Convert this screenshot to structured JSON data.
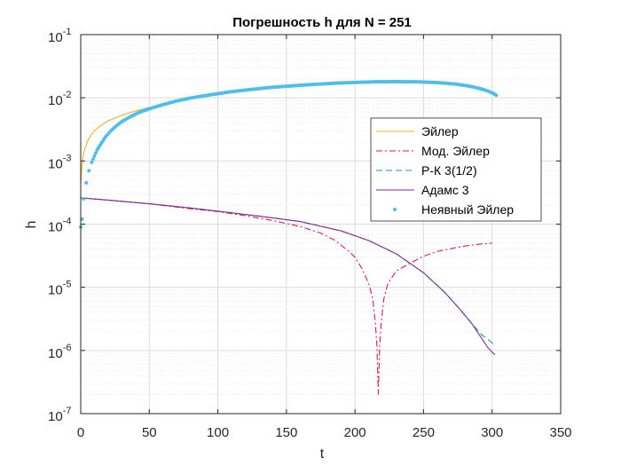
{
  "chart_data": {
    "type": "line",
    "title": "Погрешность h для N = 251",
    "xlabel": "t",
    "ylabel": "h",
    "xlim": [
      0,
      350
    ],
    "ylim_exp": [
      -7,
      -1
    ],
    "yscale": "log",
    "grid": true,
    "minor_grid": true,
    "x_ticks": [
      "0",
      "50",
      "100",
      "150",
      "200",
      "250",
      "300",
      "350"
    ],
    "y_ticks": [
      {
        "base": "10",
        "exp": "-7"
      },
      {
        "base": "10",
        "exp": "-6"
      },
      {
        "base": "10",
        "exp": "-5"
      },
      {
        "base": "10",
        "exp": "-4"
      },
      {
        "base": "10",
        "exp": "-3"
      },
      {
        "base": "10",
        "exp": "-2"
      },
      {
        "base": "10",
        "exp": "-1"
      }
    ],
    "legend_position": "right-center",
    "series": [
      {
        "name": "Эйлер",
        "style": "solid",
        "color": "#EDB120",
        "points": [
          [
            0,
            0.00045
          ],
          [
            1,
            0.0009
          ],
          [
            2,
            0.0013
          ],
          [
            4,
            0.0018
          ],
          [
            6,
            0.0023
          ],
          [
            10,
            0.003
          ],
          [
            15,
            0.0037
          ],
          [
            20,
            0.0043
          ],
          [
            30,
            0.0053
          ],
          [
            40,
            0.0062
          ],
          [
            50,
            0.007
          ],
          [
            70,
            0.0089
          ],
          [
            100,
            0.0115
          ],
          [
            130,
            0.0138
          ],
          [
            160,
            0.0157
          ],
          [
            190,
            0.0171
          ],
          [
            220,
            0.018
          ],
          [
            250,
            0.0179
          ],
          [
            280,
            0.0159
          ],
          [
            295,
            0.0138
          ],
          [
            303,
            0.0115
          ]
        ]
      },
      {
        "name": "Мод. Эйлер",
        "style": "dashdot",
        "color": "#D9185A",
        "points": [
          [
            0,
            0.00026
          ],
          [
            20,
            0.00024
          ],
          [
            50,
            0.00021
          ],
          [
            80,
            0.000175
          ],
          [
            100,
            0.000158
          ],
          [
            120,
            0.000136
          ],
          [
            140,
            0.000114
          ],
          [
            160,
            9.2e-05
          ],
          [
            175,
            7.2e-05
          ],
          [
            185,
            5.6e-05
          ],
          [
            195,
            3.8e-05
          ],
          [
            200,
            3e-05
          ],
          [
            205,
            2e-05
          ],
          [
            210,
            1.15e-05
          ],
          [
            213,
            6.5e-06
          ],
          [
            215,
            2.5e-06
          ],
          [
            216,
            1.2e-06
          ],
          [
            217,
            2e-07
          ],
          [
            218,
            1.2e-06
          ],
          [
            219,
            2.5e-06
          ],
          [
            221,
            6.5e-06
          ],
          [
            224,
            1.15e-05
          ],
          [
            230,
            1.8e-05
          ],
          [
            240,
            2.4e-05
          ],
          [
            250,
            3.1e-05
          ],
          [
            260,
            3.7e-05
          ],
          [
            270,
            4.1e-05
          ],
          [
            280,
            4.5e-05
          ],
          [
            290,
            4.8e-05
          ],
          [
            300,
            5e-05
          ]
        ]
      },
      {
        "name": "Р-К 3(1/2)",
        "style": "dashed",
        "color": "#1F9A8A",
        "points": [
          [
            0,
            0.00026
          ],
          [
            20,
            0.00024
          ],
          [
            50,
            0.00021
          ],
          [
            80,
            0.00018
          ],
          [
            100,
            0.00016
          ],
          [
            130,
            0.000134
          ],
          [
            160,
            0.00011
          ],
          [
            190,
            7.8e-05
          ],
          [
            210,
            5.5e-05
          ],
          [
            230,
            3.4e-05
          ],
          [
            250,
            1.7e-05
          ],
          [
            265,
            8.5e-06
          ],
          [
            275,
            4.9e-06
          ],
          [
            285,
            2.7e-06
          ],
          [
            292,
            1.8e-06
          ],
          [
            297,
            1.5e-06
          ],
          [
            302,
            1.2e-06
          ]
        ]
      },
      {
        "name": "Адамс 3",
        "style": "solid",
        "color": "#7E2F8E",
        "points": [
          [
            0,
            0.00026
          ],
          [
            20,
            0.00024
          ],
          [
            50,
            0.00021
          ],
          [
            80,
            0.00018
          ],
          [
            100,
            0.00016
          ],
          [
            130,
            0.000134
          ],
          [
            160,
            0.00011
          ],
          [
            190,
            7.8e-05
          ],
          [
            210,
            5.5e-05
          ],
          [
            230,
            3.4e-05
          ],
          [
            250,
            1.7e-05
          ],
          [
            265,
            8.5e-06
          ],
          [
            275,
            4.9e-06
          ],
          [
            285,
            2.7e-06
          ],
          [
            292,
            1.6e-06
          ],
          [
            297,
            1.1e-06
          ],
          [
            302,
            8.5e-07
          ]
        ]
      },
      {
        "name": "Неявный Эйлер",
        "style": "markers",
        "color": "#4DBEEE",
        "points": [
          [
            0,
            9e-05
          ],
          [
            1,
            0.00012
          ],
          [
            2,
            0.00025
          ],
          [
            4,
            0.00045
          ],
          [
            6,
            0.0007
          ],
          [
            8,
            0.00095
          ],
          [
            10,
            0.0012
          ],
          [
            12,
            0.0015
          ],
          [
            15,
            0.0019
          ],
          [
            18,
            0.0024
          ],
          [
            22,
            0.003
          ],
          [
            26,
            0.0036
          ],
          [
            30,
            0.0042
          ],
          [
            36,
            0.005
          ],
          [
            42,
            0.0058
          ],
          [
            50,
            0.0067
          ],
          [
            60,
            0.0078
          ],
          [
            70,
            0.0089
          ],
          [
            80,
            0.0099
          ],
          [
            95,
            0.0112
          ],
          [
            110,
            0.0125
          ],
          [
            125,
            0.0136
          ],
          [
            140,
            0.0147
          ],
          [
            155,
            0.0155
          ],
          [
            170,
            0.0163
          ],
          [
            185,
            0.017
          ],
          [
            200,
            0.0175
          ],
          [
            215,
            0.0179
          ],
          [
            230,
            0.018
          ],
          [
            245,
            0.0179
          ],
          [
            260,
            0.0174
          ],
          [
            272,
            0.0166
          ],
          [
            282,
            0.0155
          ],
          [
            290,
            0.0142
          ],
          [
            296,
            0.013
          ],
          [
            300,
            0.012
          ],
          [
            303,
            0.011
          ]
        ]
      }
    ]
  }
}
